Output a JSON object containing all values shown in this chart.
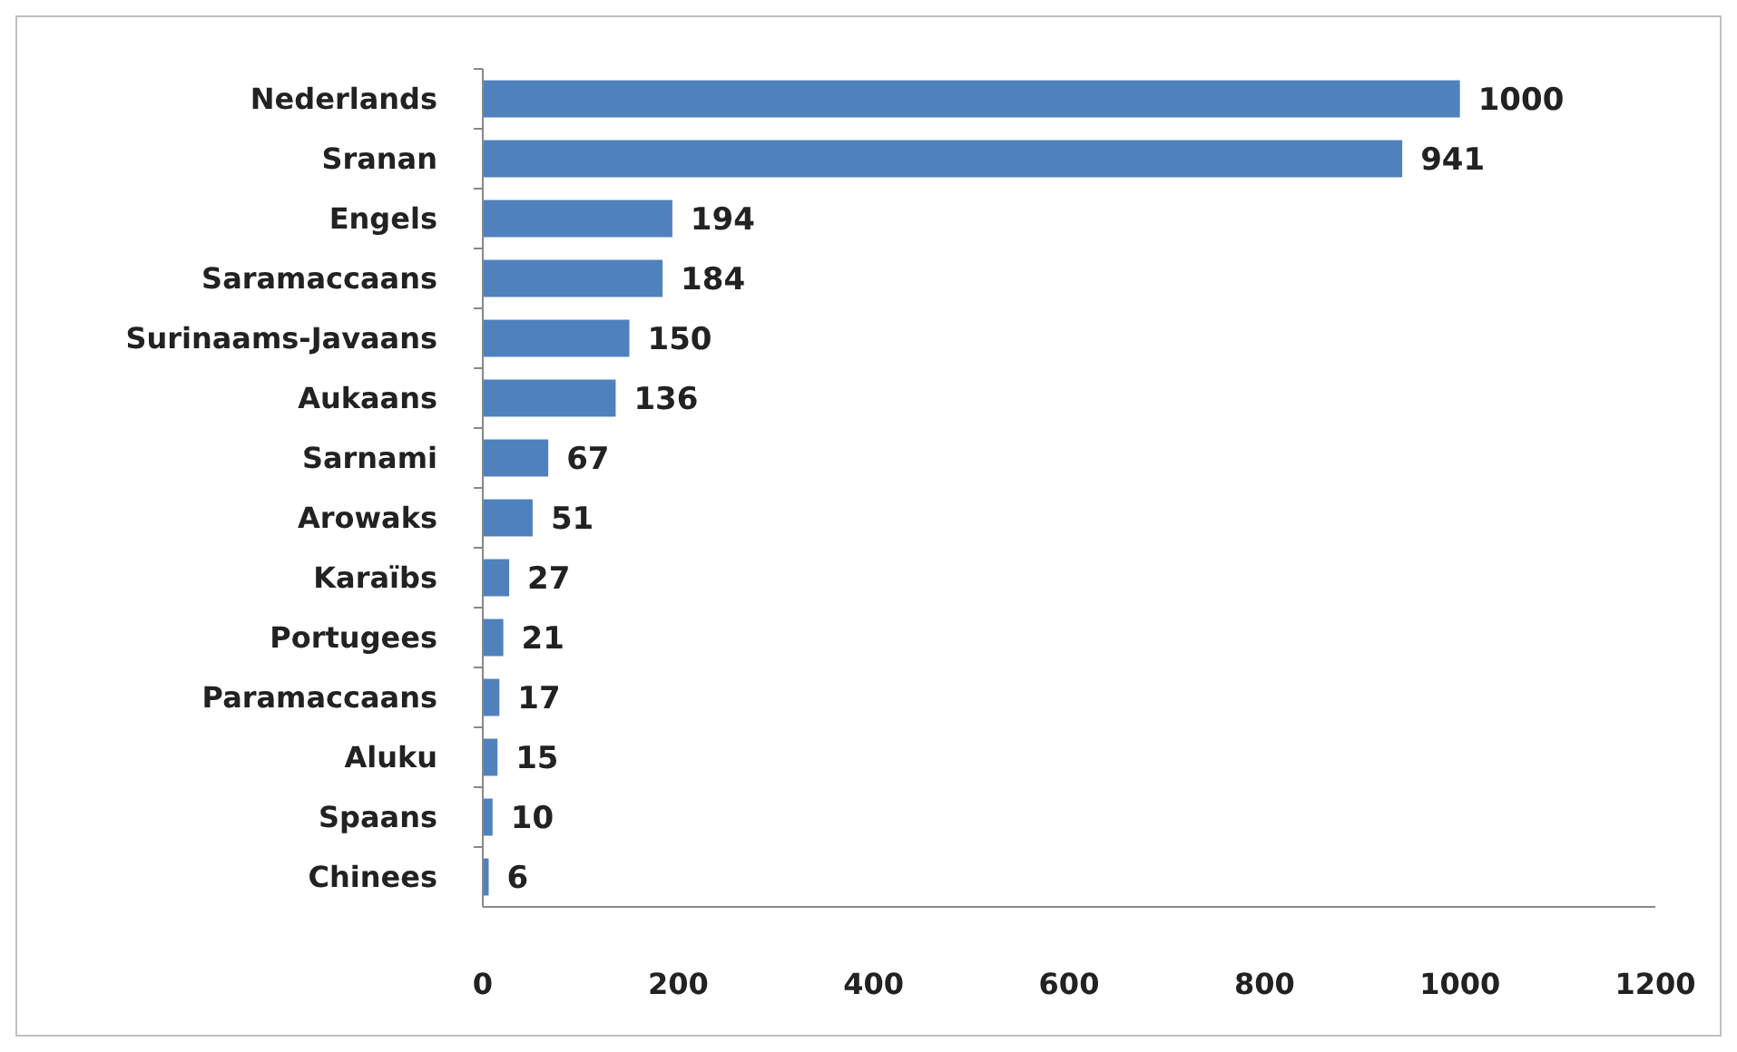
{
  "chart_data": {
    "type": "bar",
    "orientation": "horizontal",
    "categories": [
      "Nederlands",
      "Sranan",
      "Engels",
      "Saramaccaans",
      "Surinaams-Javaans",
      "Aukaans",
      "Sarnami",
      "Arowaks",
      "Karaïbs",
      "Portugees",
      "Paramaccaans",
      "Aluku",
      "Spaans",
      "Chinees"
    ],
    "values": [
      1000,
      941,
      194,
      184,
      150,
      136,
      67,
      51,
      27,
      21,
      17,
      15,
      10,
      6
    ],
    "color": "#4f81bd",
    "xlim": [
      0,
      1200
    ],
    "xticks": [
      0,
      200,
      400,
      600,
      800,
      1000,
      1200
    ],
    "grid": false,
    "data_labels": true
  }
}
